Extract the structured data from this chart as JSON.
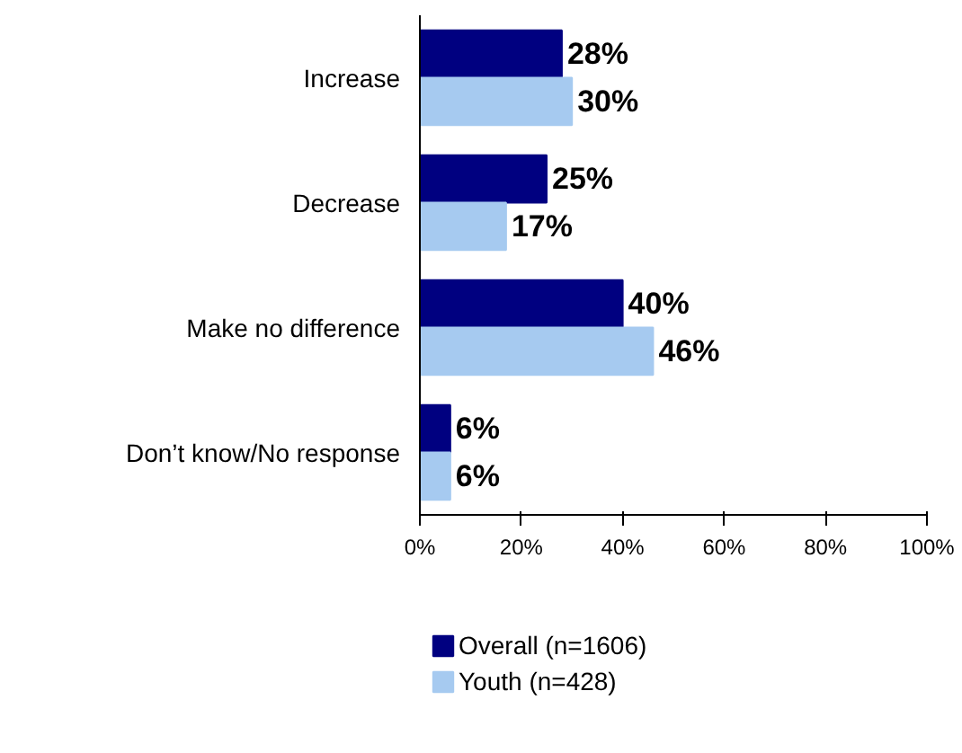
{
  "chart_data": {
    "type": "bar",
    "orientation": "horizontal",
    "categories": [
      "Increase",
      "Decrease",
      "Make no difference",
      "Don’t know/No response"
    ],
    "series": [
      {
        "name": "Overall (n=1606)",
        "color": "#000080",
        "values": [
          28,
          25,
          40,
          6
        ],
        "value_labels": [
          "28%",
          "25%",
          "40%",
          "6%"
        ]
      },
      {
        "name": "Youth (n=428)",
        "color": "#a6caf0",
        "values": [
          30,
          17,
          46,
          6
        ],
        "value_labels": [
          "30%",
          "17%",
          "46%",
          "6%"
        ]
      }
    ],
    "xlim": [
      0,
      100
    ],
    "xticks": [
      {
        "value": 0,
        "label": "0%"
      },
      {
        "value": 20,
        "label": "20%"
      },
      {
        "value": 40,
        "label": "40%"
      },
      {
        "value": 60,
        "label": "60%"
      },
      {
        "value": 80,
        "label": "80%"
      },
      {
        "value": 100,
        "label": "100%"
      }
    ],
    "grid": false,
    "legend": "bottom"
  }
}
